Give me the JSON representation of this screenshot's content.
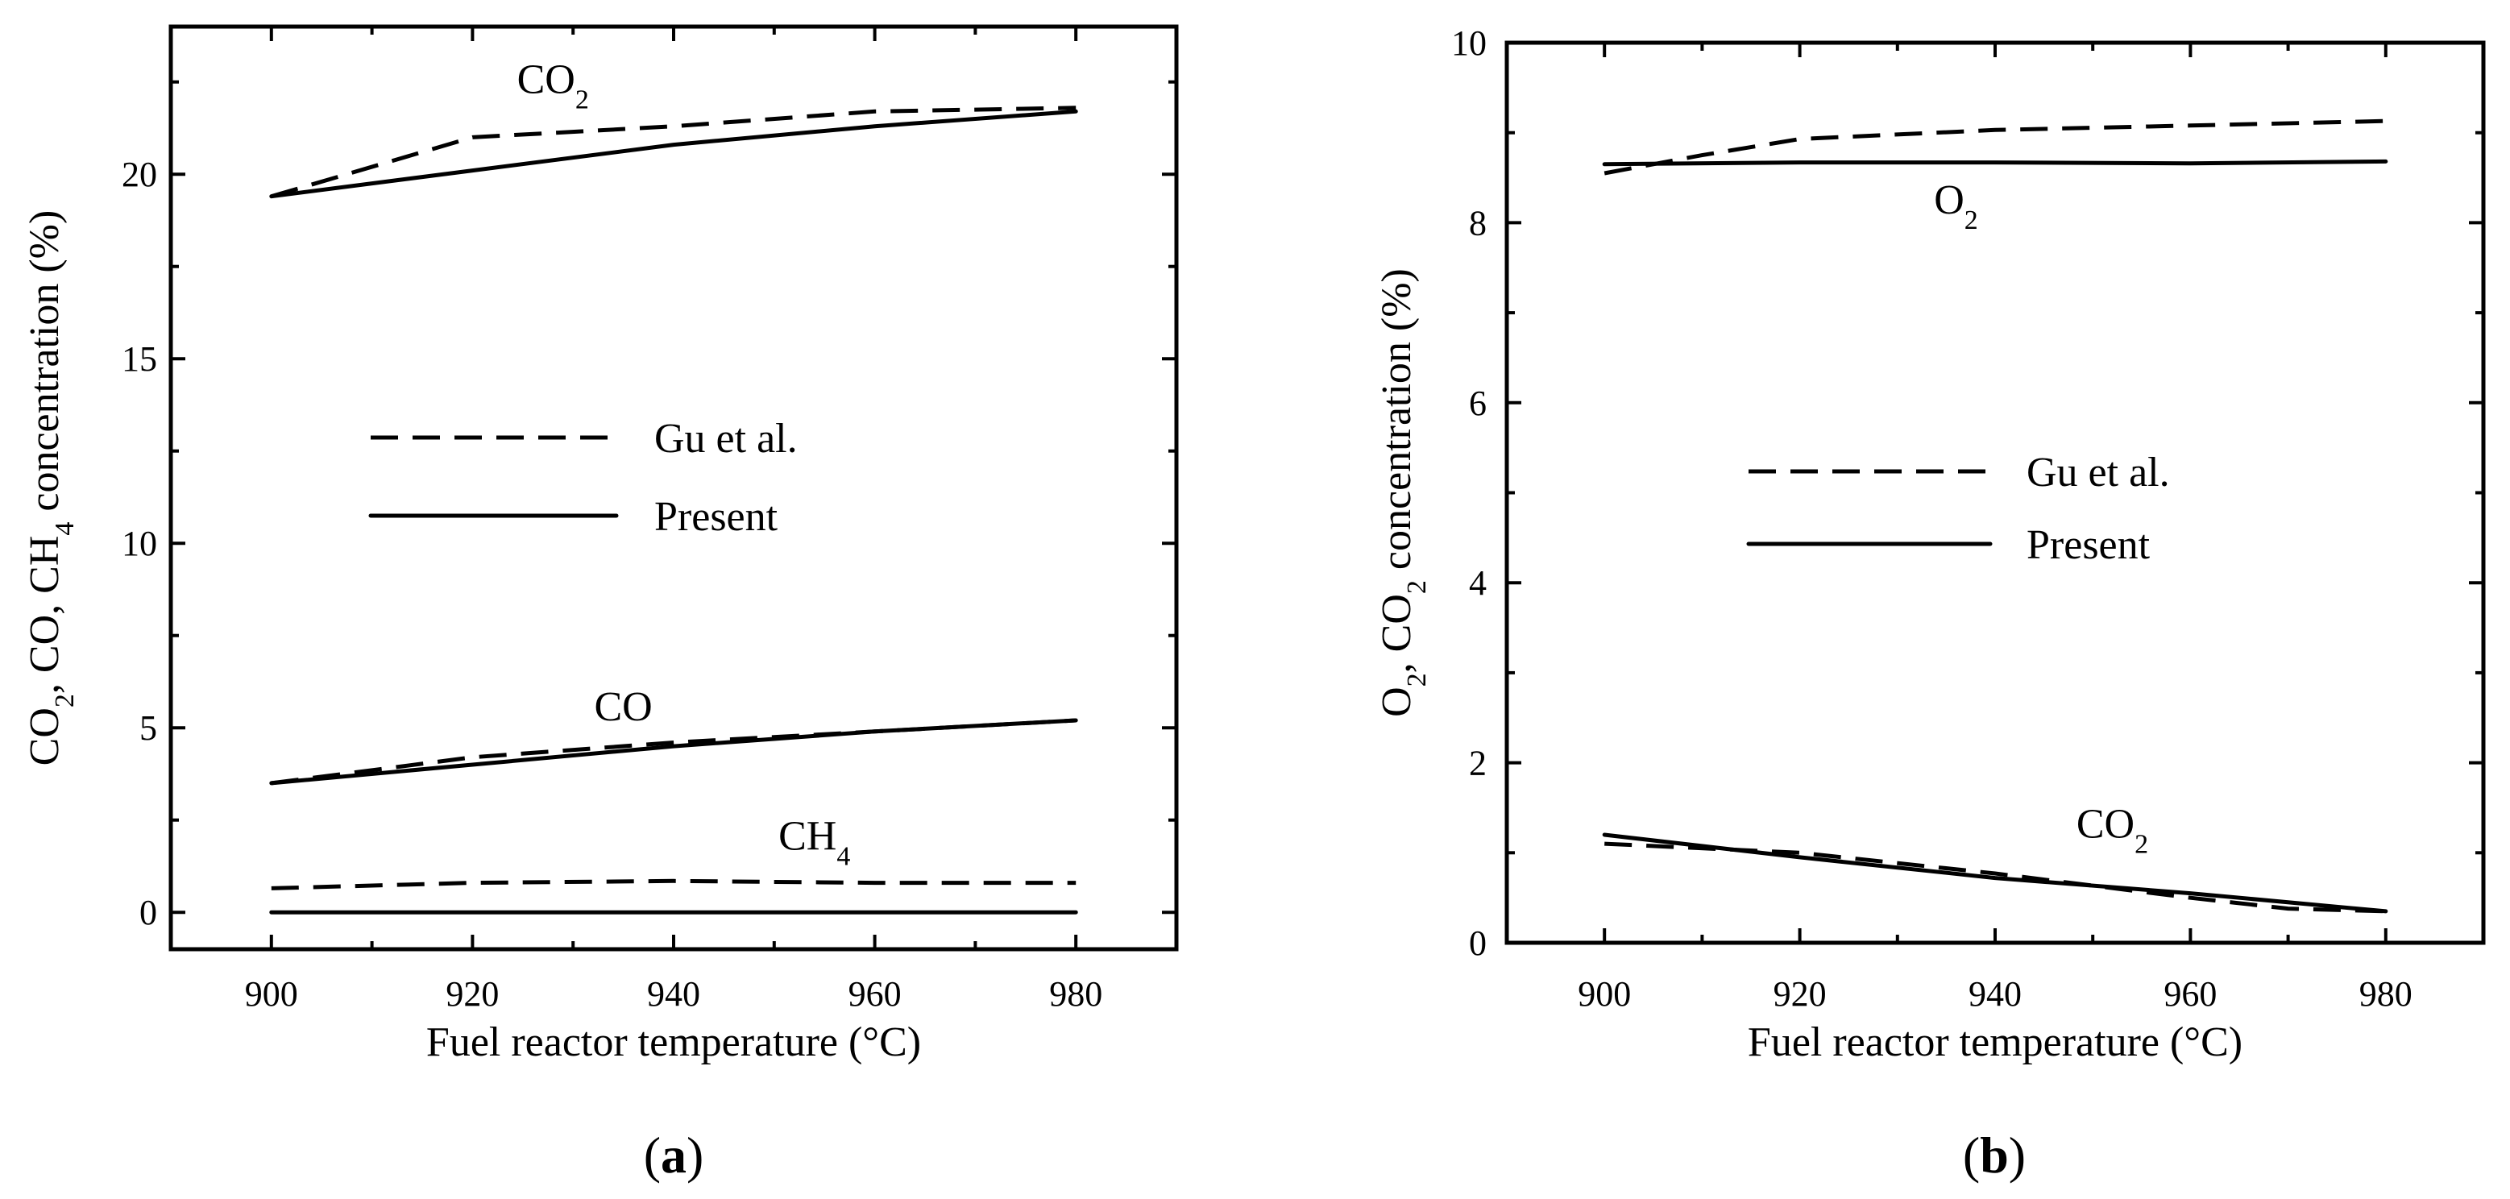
{
  "chart_data": [
    {
      "panel": "a",
      "type": "line",
      "panel_label": "(a)",
      "xlabel": "Fuel reactor temperature (°C)",
      "ylabel": {
        "parts": [
          "CO",
          "2",
          ", CO, CH",
          "4",
          " concentration (%)"
        ]
      },
      "xlim": [
        890,
        990
      ],
      "ylim": [
        -1,
        24
      ],
      "xticks": [
        900,
        920,
        940,
        960,
        980
      ],
      "yticks": [
        0,
        5,
        10,
        15,
        20
      ],
      "legend": {
        "position": "center",
        "entries": [
          {
            "name": "Gu et al.",
            "style": "dashed"
          },
          {
            "name": "Present",
            "style": "solid"
          }
        ]
      },
      "series": [
        {
          "name": "CO2 Gu et al.",
          "style": "dashed",
          "x": [
            900,
            920,
            940,
            960,
            980
          ],
          "y": [
            19.4,
            21.0,
            21.3,
            21.7,
            21.8
          ]
        },
        {
          "name": "CO2 Present",
          "style": "solid",
          "x": [
            900,
            920,
            940,
            960,
            980
          ],
          "y": [
            19.4,
            20.1,
            20.8,
            21.3,
            21.7
          ]
        },
        {
          "name": "CO Gu et al.",
          "style": "dashed",
          "x": [
            900,
            920,
            940,
            960,
            980
          ],
          "y": [
            3.5,
            4.2,
            4.6,
            4.9,
            5.2
          ]
        },
        {
          "name": "CO Present",
          "style": "solid",
          "x": [
            900,
            920,
            940,
            960,
            980
          ],
          "y": [
            3.5,
            4.0,
            4.5,
            4.9,
            5.2
          ]
        },
        {
          "name": "CH4 Gu et al.",
          "style": "dashed",
          "x": [
            900,
            920,
            940,
            960,
            980
          ],
          "y": [
            0.65,
            0.8,
            0.85,
            0.8,
            0.8
          ]
        },
        {
          "name": "CH4 Present",
          "style": "solid",
          "x": [
            900,
            920,
            940,
            960,
            980
          ],
          "y": [
            0.0,
            0.0,
            0.0,
            0.0,
            0.0
          ]
        }
      ],
      "annotations": [
        {
          "parts": [
            "CO",
            "2"
          ],
          "x": 928,
          "y": 22.2
        },
        {
          "parts": [
            "CO"
          ],
          "x": 935,
          "y": 5.2
        },
        {
          "parts": [
            "CH",
            "4"
          ],
          "x": 954,
          "y": 1.7
        }
      ]
    },
    {
      "panel": "b",
      "type": "line",
      "panel_label": "(b)",
      "xlabel": "Fuel reactor temperature (°C)",
      "ylabel": {
        "parts": [
          "O",
          "2",
          ", CO",
          "2",
          " concentration (%)"
        ]
      },
      "xlim": [
        890,
        990
      ],
      "ylim": [
        0,
        10
      ],
      "xticks": [
        900,
        920,
        940,
        960,
        980
      ],
      "yticks": [
        0,
        2,
        4,
        6,
        8,
        10
      ],
      "legend": {
        "position": "center",
        "entries": [
          {
            "name": "Gu et al.",
            "style": "dashed"
          },
          {
            "name": "Present",
            "style": "solid"
          }
        ]
      },
      "series": [
        {
          "name": "O2 Gu et al.",
          "style": "dashed",
          "x": [
            900,
            910,
            920,
            940,
            960,
            980
          ],
          "y": [
            8.55,
            8.75,
            8.93,
            9.03,
            9.08,
            9.13
          ]
        },
        {
          "name": "O2 Present",
          "style": "solid",
          "x": [
            900,
            920,
            940,
            960,
            980
          ],
          "y": [
            8.65,
            8.67,
            8.67,
            8.66,
            8.68
          ]
        },
        {
          "name": "CO2 Gu et al.",
          "style": "dashed",
          "x": [
            900,
            920,
            940,
            960,
            970,
            980
          ],
          "y": [
            1.1,
            1.0,
            0.77,
            0.5,
            0.38,
            0.35
          ]
        },
        {
          "name": "CO2 Present",
          "style": "solid",
          "x": [
            900,
            920,
            940,
            960,
            980
          ],
          "y": [
            1.2,
            0.95,
            0.72,
            0.55,
            0.35
          ]
        }
      ],
      "annotations": [
        {
          "parts": [
            "O",
            "2"
          ],
          "x": 936,
          "y": 8.1
        },
        {
          "parts": [
            "CO",
            "2"
          ],
          "x": 952,
          "y": 1.17
        }
      ]
    }
  ]
}
